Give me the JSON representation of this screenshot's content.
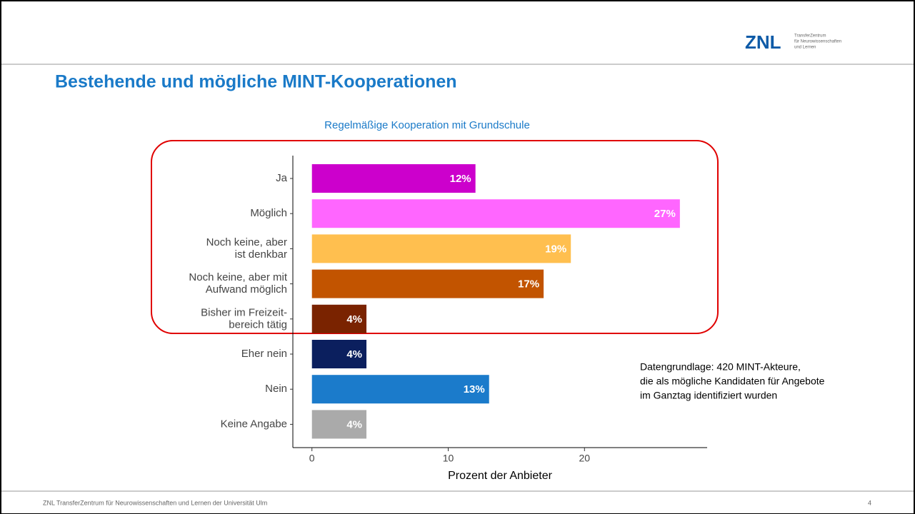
{
  "header": {
    "title": "Bestehende und mögliche MINT-Kooperationen",
    "logo": "ZNL",
    "logo_sub": [
      "TransferZentrum",
      "für Neurowissenschaften",
      "und Lernen"
    ]
  },
  "note": [
    "Datengrundlage: 420 MINT-Akteure,",
    "die als mögliche Kandidaten für Angebote",
    "im Ganztag identifiziert wurden"
  ],
  "footer": {
    "text": "ZNL TransferZentrum für Neurowissenschaften und Lernen der Universität Ulm",
    "page": "4"
  },
  "chart_data": {
    "type": "hbar",
    "title": "Regelmäßige Kooperation mit Grundschule",
    "categories": [
      "Ja",
      "Möglich",
      [
        "Noch keine, aber",
        "ist denkbar"
      ],
      [
        "Noch keine, aber mit",
        "Aufwand möglich"
      ],
      [
        "Bisher im Freizeit-",
        "bereich tätig"
      ],
      "Eher nein",
      "Nein",
      "Keine Angabe"
    ],
    "values": [
      12,
      27,
      19,
      17,
      4,
      4,
      13,
      4
    ],
    "value_labels": [
      "12%",
      "27%",
      "19%",
      "17%",
      "4%",
      "4%",
      "13%",
      "4%"
    ],
    "colors": [
      "#cc00cc",
      "#ff66ff",
      "#ffbf4f",
      "#c25400",
      "#7a2300",
      "#0b1f5e",
      "#1b7bcb",
      "#aaaaaa"
    ],
    "xlabel": "Prozent der Anbieter",
    "xlim": [
      -1.4,
      29
    ],
    "xticks": [
      0,
      10,
      20
    ]
  }
}
